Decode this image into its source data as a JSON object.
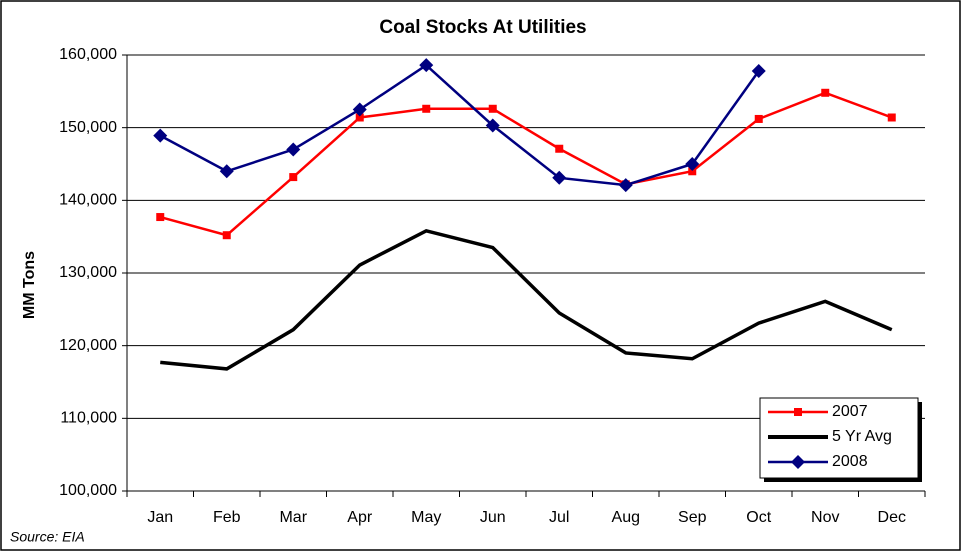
{
  "chart_data": {
    "type": "line",
    "title": "Coal Stocks At Utilities",
    "y_label": "MM Tons",
    "source": "Source: EIA",
    "categories": [
      "Jan",
      "Feb",
      "Mar",
      "Apr",
      "May",
      "Jun",
      "Jul",
      "Aug",
      "Sep",
      "Oct",
      "Nov",
      "Dec"
    ],
    "series": [
      {
        "name": "2007",
        "color": "#ff0000",
        "marker": "square",
        "values": [
          137700,
          135200,
          143200,
          151400,
          152600,
          152600,
          147100,
          142200,
          144000,
          151200,
          154800,
          151400
        ]
      },
      {
        "name": "5 Yr Avg",
        "color": "#000000",
        "marker": "none",
        "values": [
          117700,
          116800,
          122200,
          131100,
          135800,
          133500,
          124500,
          119000,
          118200,
          123100,
          126100,
          122200
        ]
      },
      {
        "name": "2008",
        "color": "#000080",
        "marker": "diamond",
        "values": [
          148900,
          144000,
          147000,
          152500,
          158600,
          150300,
          143100,
          142100,
          145000,
          157800,
          null,
          null
        ]
      }
    ],
    "ylim": [
      100000,
      160000
    ],
    "yticks": [
      {
        "value": 100000,
        "label": "100,000"
      },
      {
        "value": 110000,
        "label": "110,000"
      },
      {
        "value": 120000,
        "label": "120,000"
      },
      {
        "value": 130000,
        "label": "130,000"
      },
      {
        "value": 140000,
        "label": "140,000"
      },
      {
        "value": 150000,
        "label": "150,000"
      },
      {
        "value": 160000,
        "label": "160,000"
      }
    ],
    "grid": true,
    "legend": "lower right"
  }
}
